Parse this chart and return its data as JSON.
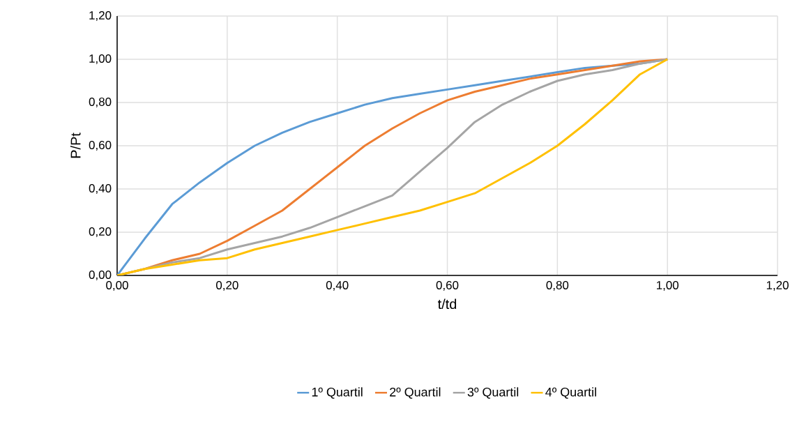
{
  "chart_data": {
    "type": "line",
    "xlabel": "t/td",
    "ylabel": "P/Pt",
    "x": [
      0,
      0.05,
      0.1,
      0.15,
      0.2,
      0.25,
      0.3,
      0.35,
      0.4,
      0.45,
      0.5,
      0.55,
      0.6,
      0.65,
      0.7,
      0.75,
      0.8,
      0.85,
      0.9,
      0.95,
      1.0
    ],
    "series": [
      {
        "name": "1º Quartil",
        "color": "#5b9bd5",
        "values": [
          0,
          0.17,
          0.33,
          0.43,
          0.52,
          0.6,
          0.66,
          0.71,
          0.75,
          0.79,
          0.82,
          0.84,
          0.86,
          0.88,
          0.9,
          0.92,
          0.94,
          0.96,
          0.97,
          0.98,
          1.0
        ]
      },
      {
        "name": "2º Quartil",
        "color": "#ed7d31",
        "values": [
          0,
          0.03,
          0.07,
          0.1,
          0.16,
          0.23,
          0.3,
          0.4,
          0.5,
          0.6,
          0.68,
          0.75,
          0.81,
          0.85,
          0.88,
          0.91,
          0.93,
          0.95,
          0.97,
          0.99,
          1.0
        ]
      },
      {
        "name": "3º Quartil",
        "color": "#a5a5a5",
        "values": [
          0,
          null,
          0.06,
          0.08,
          0.12,
          0.15,
          0.18,
          0.22,
          0.27,
          0.32,
          0.37,
          0.48,
          0.59,
          0.71,
          0.79,
          0.85,
          0.9,
          0.93,
          0.95,
          0.98,
          1.0
        ]
      },
      {
        "name": "4º Quartil",
        "color": "#ffc000",
        "values": [
          0,
          0.03,
          0.05,
          0.07,
          0.08,
          0.12,
          0.15,
          0.18,
          0.21,
          0.24,
          0.27,
          0.3,
          0.34,
          0.38,
          0.45,
          0.52,
          0.6,
          0.7,
          0.81,
          0.93,
          1.0
        ]
      }
    ],
    "xlim": [
      0,
      1.2
    ],
    "ylim": [
      0,
      1.2
    ],
    "xticks": [
      {
        "value": 0,
        "label": "0,00"
      },
      {
        "value": 0.2,
        "label": "0,20"
      },
      {
        "value": 0.4,
        "label": "0,40"
      },
      {
        "value": 0.6,
        "label": "0,60"
      },
      {
        "value": 0.8,
        "label": "0,80"
      },
      {
        "value": 1.0,
        "label": "1,00"
      },
      {
        "value": 1.2,
        "label": "1,20"
      }
    ],
    "yticks": [
      {
        "value": 0,
        "label": "0,00"
      },
      {
        "value": 0.2,
        "label": "0,20"
      },
      {
        "value": 0.4,
        "label": "0,40"
      },
      {
        "value": 0.6,
        "label": "0,60"
      },
      {
        "value": 0.8,
        "label": "0,80"
      },
      {
        "value": 1.0,
        "label": "1,00"
      },
      {
        "value": 1.2,
        "label": "1,20"
      }
    ],
    "grid": true,
    "legend": "bottom",
    "marker": "none",
    "line_style": "solid"
  }
}
